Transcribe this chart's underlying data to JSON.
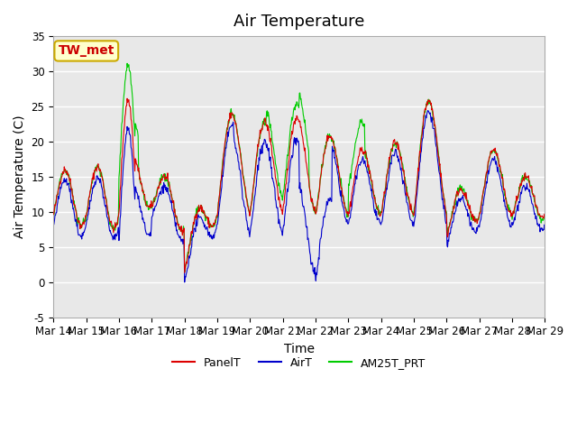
{
  "title": "Air Temperature",
  "ylabel": "Air Temperature (C)",
  "xlabel": "Time",
  "xlim_days": [
    0,
    15
  ],
  "ylim": [
    -5,
    35
  ],
  "yticks": [
    -5,
    0,
    5,
    10,
    15,
    20,
    25,
    30,
    35
  ],
  "x_tick_labels": [
    "Mar 14",
    "Mar 15",
    "Mar 16",
    "Mar 17",
    "Mar 18",
    "Mar 19",
    "Mar 20",
    "Mar 21",
    "Mar 22",
    "Mar 23",
    "Mar 24",
    "Mar 25",
    "Mar 26",
    "Mar 27",
    "Mar 28",
    "Mar 29"
  ],
  "annotation_text": "TW_met",
  "annotation_color": "#cc0000",
  "annotation_bg": "#ffffcc",
  "annotation_border": "#ccaa00",
  "series": {
    "PanelT": {
      "color": "#dd0000",
      "zorder": 3
    },
    "AirT": {
      "color": "#0000cc",
      "zorder": 2
    },
    "AM25T_PRT": {
      "color": "#00cc00",
      "zorder": 1
    }
  },
  "bg_color": "#e8e8e8",
  "grid_color": "#ffffff",
  "title_fontsize": 13,
  "label_fontsize": 10,
  "tick_fontsize": 8.5,
  "legend_fontsize": 9
}
